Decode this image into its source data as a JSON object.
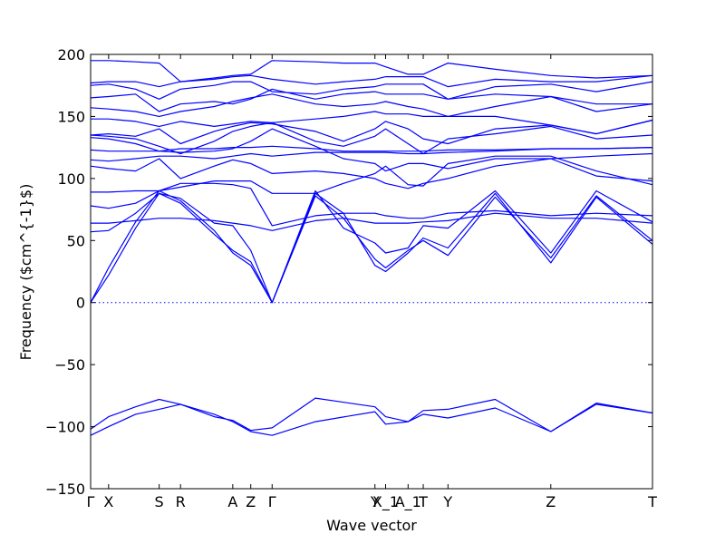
{
  "chart_data": {
    "type": "line",
    "xlabel": "Wave vector",
    "ylabel": "Frequency ($cm^{-1}$)",
    "ylim": [
      -150,
      200
    ],
    "yticks": [
      -150,
      -100,
      -50,
      0,
      50,
      100,
      150,
      200
    ],
    "ytick_labels": [
      "−150",
      "−100",
      "−50",
      "0",
      "50",
      "100",
      "150",
      "200"
    ],
    "xlim": [
      0,
      1
    ],
    "xticks": [
      {
        "label": "Γ",
        "x": 0.0
      },
      {
        "label": "X",
        "x": 0.032
      },
      {
        "label": "S",
        "x": 0.122
      },
      {
        "label": "R",
        "x": 0.16
      },
      {
        "label": "A",
        "x": 0.253
      },
      {
        "label": "Z",
        "x": 0.285
      },
      {
        "label": "Γ",
        "x": 0.323
      },
      {
        "label": "Y",
        "x": 0.506
      },
      {
        "label": "X_1",
        "x": 0.525
      },
      {
        "label": "A_1",
        "x": 0.565
      },
      {
        "label": "T",
        "x": 0.592
      },
      {
        "label": "Y",
        "x": 0.636
      },
      {
        "label": "Z",
        "x": 0.819
      },
      {
        "label": "T",
        "x": 1.0
      }
    ],
    "zero_line": {
      "y": 0,
      "style": "dotted"
    },
    "grid": false,
    "legend": "none",
    "series_color": "#0000ff",
    "series": [
      {
        "x": [
          0,
          0.032,
          0.08,
          0.122,
          0.16,
          0.22,
          0.253,
          0.285,
          0.323,
          0.4,
          0.506,
          0.525,
          0.565,
          0.592,
          0.636,
          0.72,
          0.819,
          0.9,
          1.0
        ],
        "values": [
          -107,
          -100,
          -90,
          -86,
          -82,
          -90,
          -96,
          -104,
          -107,
          -96,
          -88,
          -98,
          -96,
          -90,
          -93,
          -85,
          -104,
          -82,
          -89
        ]
      },
      {
        "x": [
          0,
          0.032,
          0.08,
          0.122,
          0.16,
          0.22,
          0.253,
          0.285,
          0.323,
          0.4,
          0.506,
          0.525,
          0.565,
          0.592,
          0.636,
          0.72,
          0.819,
          0.9,
          1.0
        ],
        "values": [
          -102,
          -92,
          -84,
          -78,
          -82,
          -92,
          -95,
          -103,
          -101,
          -77,
          -84,
          -92,
          -96,
          -87,
          -86,
          -78,
          -104,
          -81,
          -89
        ]
      },
      {
        "x": [
          0,
          0.032,
          0.08,
          0.122,
          0.16,
          0.22,
          0.253,
          0.285,
          0.323,
          0.4,
          0.45,
          0.506,
          0.525,
          0.565,
          0.592,
          0.636,
          0.72,
          0.819,
          0.9,
          1.0
        ],
        "values": [
          0,
          22,
          60,
          88,
          80,
          55,
          42,
          33,
          0,
          88,
          72,
          30,
          25,
          40,
          52,
          44,
          88,
          32,
          85,
          47
        ]
      },
      {
        "x": [
          0,
          0.032,
          0.08,
          0.122,
          0.16,
          0.22,
          0.253,
          0.285,
          0.323,
          0.4,
          0.45,
          0.506,
          0.525,
          0.565,
          0.592,
          0.636,
          0.72,
          0.819,
          0.9,
          1.0
        ],
        "values": [
          0,
          28,
          65,
          90,
          82,
          58,
          40,
          30,
          0,
          86,
          68,
          35,
          28,
          42,
          50,
          38,
          85,
          36,
          86,
          50
        ]
      },
      {
        "x": [
          0,
          0.032,
          0.08,
          0.122,
          0.16,
          0.22,
          0.253,
          0.285,
          0.323,
          0.4,
          0.45,
          0.506,
          0.525,
          0.565,
          0.592,
          0.636,
          0.72,
          0.819,
          0.9,
          1.0
        ],
        "values": [
          57,
          58,
          72,
          88,
          84,
          64,
          62,
          42,
          0,
          90,
          60,
          48,
          40,
          44,
          62,
          60,
          90,
          40,
          90,
          65
        ]
      },
      {
        "x": [
          0,
          0.032,
          0.08,
          0.122,
          0.16,
          0.22,
          0.253,
          0.285,
          0.323,
          0.4,
          0.45,
          0.506,
          0.525,
          0.565,
          0.592,
          0.636,
          0.72,
          0.819,
          0.9,
          1.0
        ],
        "values": [
          64,
          64,
          66,
          68,
          68,
          66,
          64,
          62,
          58,
          66,
          68,
          64,
          64,
          64,
          65,
          66,
          72,
          68,
          68,
          64
        ]
      },
      {
        "x": [
          0,
          0.032,
          0.08,
          0.122,
          0.16,
          0.22,
          0.253,
          0.285,
          0.323,
          0.4,
          0.45,
          0.506,
          0.525,
          0.565,
          0.592,
          0.636,
          0.72,
          0.819,
          0.9,
          1.0
        ],
        "values": [
          78,
          76,
          80,
          90,
          96,
          96,
          95,
          92,
          62,
          70,
          72,
          72,
          70,
          68,
          68,
          72,
          74,
          70,
          72,
          70
        ]
      },
      {
        "x": [
          0,
          0.032,
          0.08,
          0.122,
          0.16,
          0.22,
          0.253,
          0.285,
          0.323,
          0.4,
          0.45,
          0.506,
          0.525,
          0.565,
          0.592,
          0.636,
          0.72,
          0.819,
          0.9,
          1.0
        ],
        "values": [
          89,
          89,
          90,
          90,
          93,
          98,
          98,
          98,
          88,
          88,
          96,
          104,
          110,
          95,
          94,
          112,
          118,
          118,
          106,
          95
        ]
      },
      {
        "x": [
          0,
          0.032,
          0.08,
          0.122,
          0.16,
          0.22,
          0.253,
          0.285,
          0.323,
          0.4,
          0.45,
          0.506,
          0.525,
          0.565,
          0.592,
          0.636,
          0.72,
          0.819,
          0.9,
          1.0
        ],
        "values": [
          110,
          108,
          106,
          116,
          100,
          110,
          115,
          112,
          104,
          106,
          104,
          100,
          96,
          92,
          96,
          100,
          110,
          116,
          102,
          98
        ]
      },
      {
        "x": [
          0,
          0.032,
          0.08,
          0.122,
          0.16,
          0.22,
          0.253,
          0.285,
          0.323,
          0.4,
          0.45,
          0.506,
          0.525,
          0.565,
          0.592,
          0.636,
          0.72,
          0.819,
          0.9,
          1.0
        ],
        "values": [
          115,
          114,
          116,
          118,
          118,
          116,
          118,
          120,
          118,
          121,
          121,
          121,
          121,
          120,
          120,
          121,
          122,
          124,
          124,
          125
        ]
      },
      {
        "x": [
          0,
          0.032,
          0.08,
          0.122,
          0.16,
          0.22,
          0.253,
          0.285,
          0.323,
          0.4,
          0.45,
          0.506,
          0.525,
          0.565,
          0.592,
          0.636,
          0.72,
          0.819,
          0.9,
          1.0
        ],
        "values": [
          123,
          122,
          122,
          122,
          124,
          124,
          125,
          125,
          126,
          124,
          122,
          122,
          122,
          122,
          122,
          123,
          123,
          124,
          124,
          125
        ]
      },
      {
        "x": [
          0,
          0.032,
          0.08,
          0.122,
          0.16,
          0.22,
          0.253,
          0.285,
          0.323,
          0.4,
          0.45,
          0.506,
          0.525,
          0.565,
          0.592,
          0.636,
          0.72,
          0.819,
          0.9,
          1.0
        ],
        "values": [
          133,
          132,
          128,
          122,
          121,
          122,
          124,
          130,
          140,
          126,
          116,
          112,
          106,
          112,
          112,
          108,
          116,
          116,
          118,
          120
        ]
      },
      {
        "x": [
          0,
          0.032,
          0.08,
          0.122,
          0.16,
          0.22,
          0.253,
          0.285,
          0.323,
          0.4,
          0.45,
          0.506,
          0.525,
          0.565,
          0.592,
          0.636,
          0.72,
          0.819,
          0.9,
          1.0
        ],
        "values": [
          135,
          134,
          132,
          126,
          120,
          130,
          138,
          142,
          145,
          130,
          126,
          134,
          140,
          128,
          120,
          132,
          136,
          142,
          132,
          135
        ]
      },
      {
        "x": [
          0,
          0.032,
          0.08,
          0.122,
          0.16,
          0.22,
          0.253,
          0.285,
          0.323,
          0.4,
          0.45,
          0.506,
          0.525,
          0.565,
          0.592,
          0.636,
          0.72,
          0.819,
          0.9,
          1.0
        ],
        "values": [
          135,
          136,
          134,
          140,
          128,
          138,
          142,
          145,
          144,
          138,
          130,
          140,
          146,
          140,
          132,
          128,
          140,
          143,
          136,
          147
        ]
      },
      {
        "x": [
          0,
          0.032,
          0.08,
          0.122,
          0.16,
          0.22,
          0.253,
          0.285,
          0.323,
          0.4,
          0.45,
          0.506,
          0.525,
          0.565,
          0.592,
          0.636,
          0.72,
          0.819,
          0.9,
          1.0
        ],
        "values": [
          148,
          148,
          146,
          142,
          146,
          142,
          144,
          146,
          145,
          148,
          150,
          154,
          152,
          152,
          150,
          150,
          150,
          143,
          136,
          147
        ]
      },
      {
        "x": [
          0,
          0.032,
          0.08,
          0.122,
          0.16,
          0.22,
          0.253,
          0.285,
          0.323,
          0.4,
          0.45,
          0.506,
          0.525,
          0.565,
          0.592,
          0.636,
          0.72,
          0.819,
          0.9,
          1.0
        ],
        "values": [
          157,
          156,
          154,
          150,
          154,
          158,
          162,
          165,
          168,
          160,
          158,
          160,
          162,
          158,
          156,
          150,
          158,
          166,
          154,
          160
        ]
      },
      {
        "x": [
          0,
          0.032,
          0.08,
          0.122,
          0.16,
          0.22,
          0.253,
          0.285,
          0.323,
          0.4,
          0.45,
          0.506,
          0.525,
          0.565,
          0.592,
          0.636,
          0.72,
          0.819,
          0.9,
          1.0
        ],
        "values": [
          165,
          166,
          168,
          154,
          160,
          162,
          160,
          164,
          172,
          164,
          168,
          170,
          168,
          168,
          168,
          164,
          168,
          166,
          160,
          160
        ]
      },
      {
        "x": [
          0,
          0.032,
          0.08,
          0.122,
          0.16,
          0.22,
          0.253,
          0.285,
          0.323,
          0.4,
          0.45,
          0.506,
          0.525,
          0.565,
          0.592,
          0.636,
          0.72,
          0.819,
          0.9,
          1.0
        ],
        "values": [
          175,
          176,
          172,
          164,
          172,
          175,
          178,
          178,
          170,
          168,
          172,
          174,
          176,
          176,
          176,
          164,
          174,
          176,
          170,
          178
        ]
      },
      {
        "x": [
          0,
          0.032,
          0.08,
          0.122,
          0.16,
          0.22,
          0.253,
          0.285,
          0.323,
          0.4,
          0.45,
          0.506,
          0.525,
          0.565,
          0.592,
          0.636,
          0.72,
          0.819,
          0.9,
          1.0
        ],
        "values": [
          177,
          178,
          178,
          174,
          178,
          180,
          182,
          183,
          180,
          176,
          178,
          180,
          182,
          182,
          182,
          174,
          180,
          178,
          178,
          183
        ]
      },
      {
        "x": [
          0,
          0.032,
          0.08,
          0.122,
          0.16,
          0.22,
          0.253,
          0.285,
          0.323,
          0.4,
          0.45,
          0.506,
          0.525,
          0.565,
          0.592,
          0.636,
          0.72,
          0.819,
          0.9,
          1.0
        ],
        "values": [
          195,
          195,
          194,
          193,
          178,
          181,
          183,
          184,
          195,
          194,
          193,
          193,
          190,
          184,
          184,
          193,
          188,
          183,
          181,
          183
        ]
      }
    ]
  }
}
